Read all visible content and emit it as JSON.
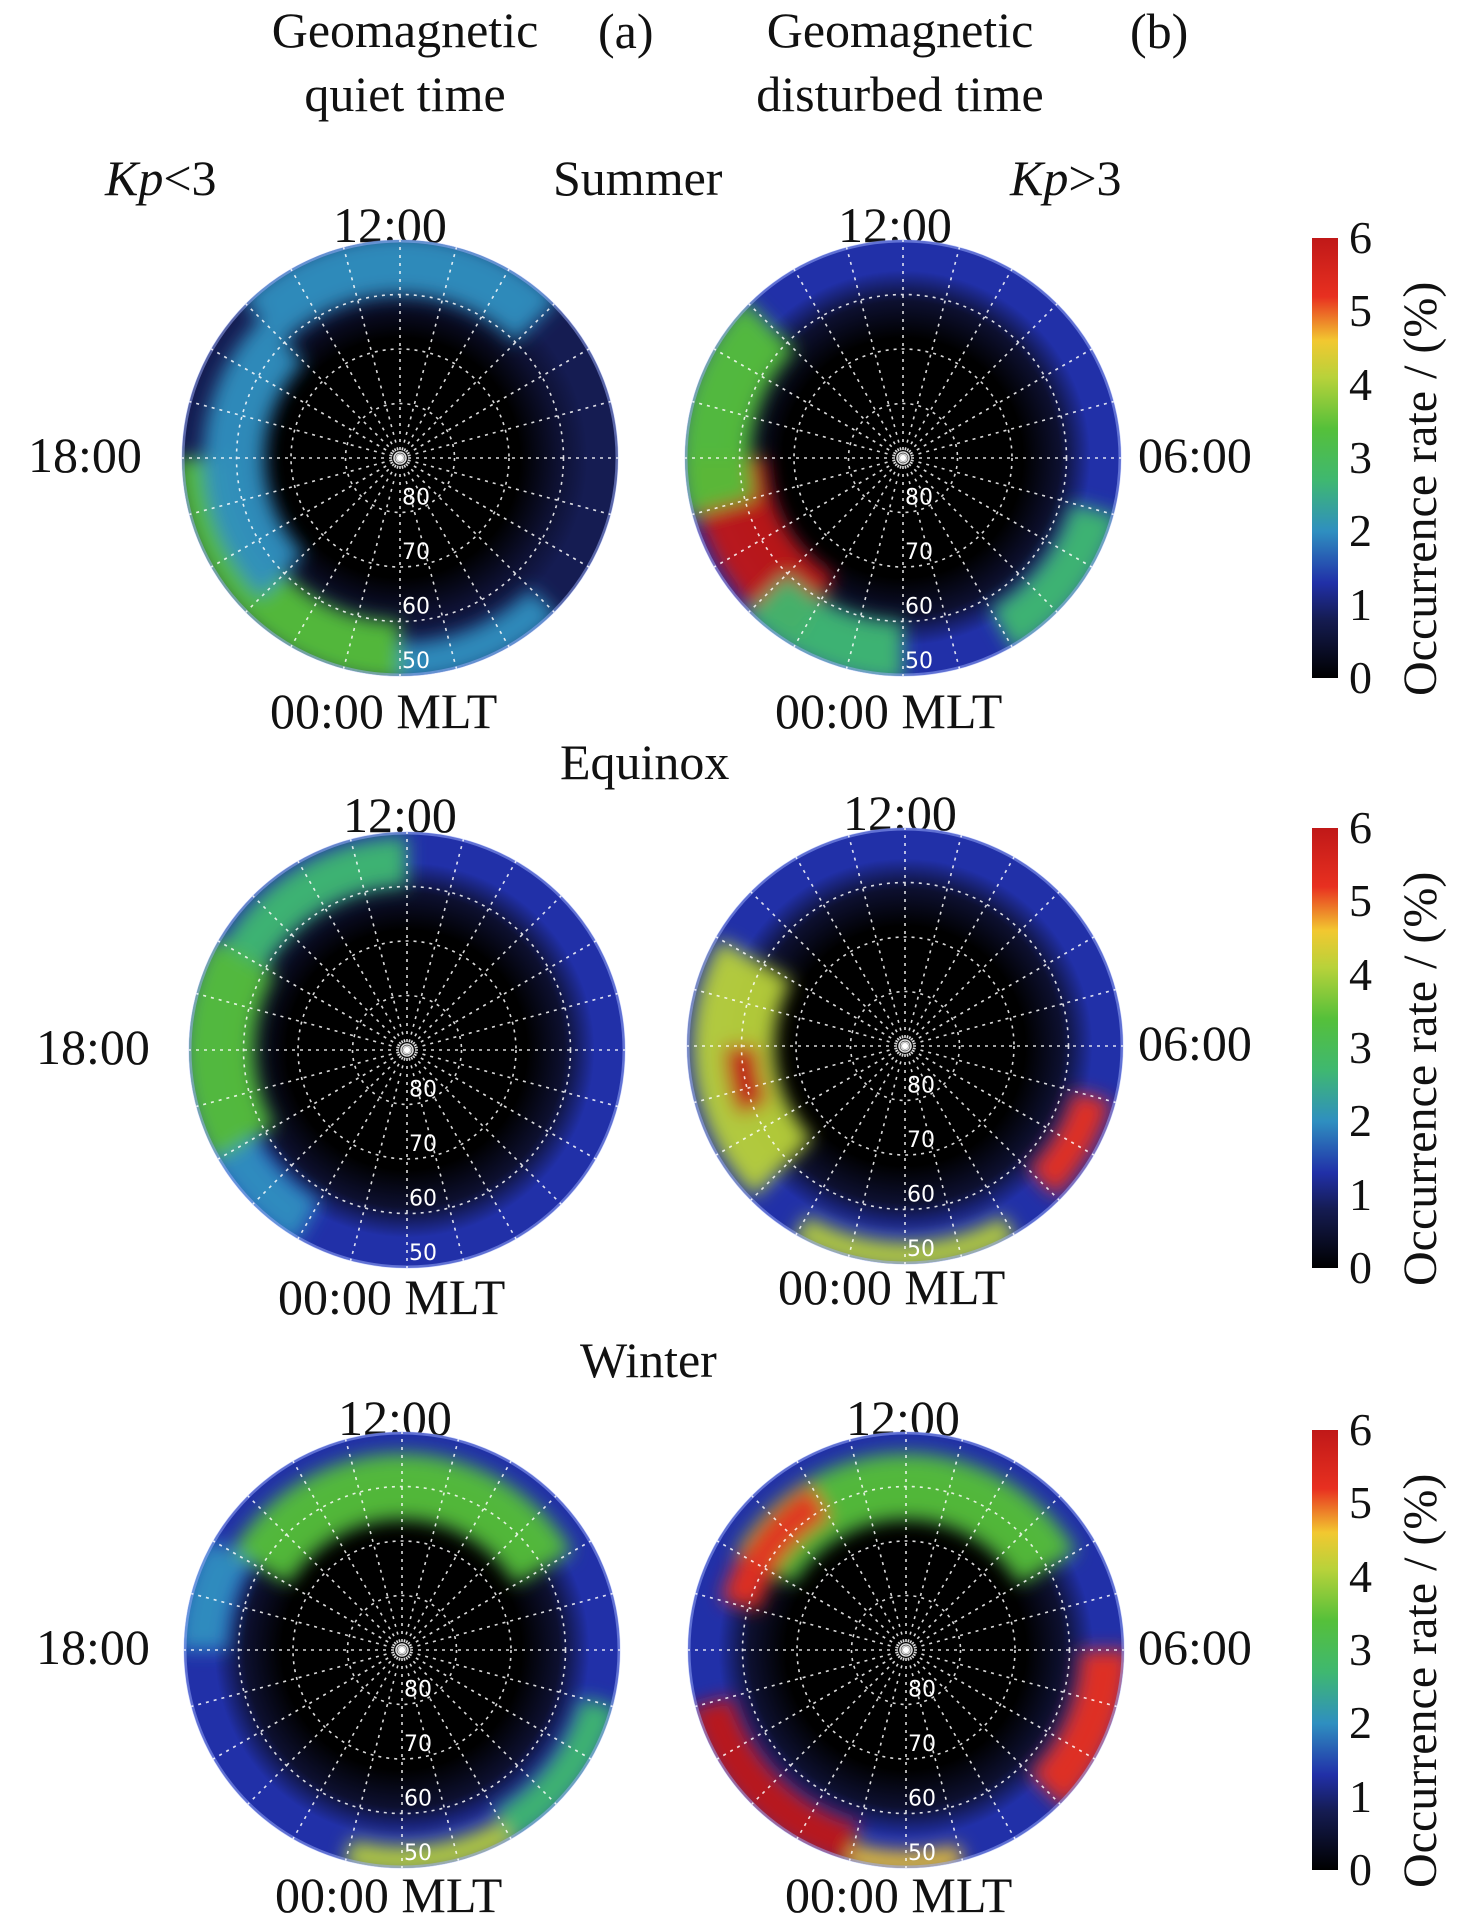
{
  "columns": [
    {
      "title_l1": "Geomagnetic",
      "title_l2": "quiet time",
      "panel": "(a)",
      "kp_pre": "Kp",
      "kp_op": "<3"
    },
    {
      "title_l1": "Geomagnetic",
      "title_l2": "disturbed time",
      "panel": "(b)",
      "kp_pre": "Kp",
      "kp_op": ">3"
    }
  ],
  "labels": {
    "top": "12:00",
    "bottom": "00:00 MLT",
    "left": "18:00",
    "right": "06:00"
  },
  "colorbar": {
    "title": "Occurrence rate / (%)",
    "ticks": [
      "6",
      "5",
      "4",
      "3",
      "2",
      "1",
      "0"
    ],
    "min": 0,
    "max": 6
  },
  "chart_data": [
    {
      "type": "heatmap",
      "season": "Summer",
      "condition": "Kp<3",
      "projection": "polar-MLT",
      "latitude_labels": [
        "80",
        "70",
        "60",
        "50"
      ],
      "mlt_labels": [
        "12:00",
        "06:00",
        "00:00 MLT",
        "18:00"
      ],
      "baseline": 0.8,
      "regions": [
        {
          "mlt_from": 18,
          "mlt_to": 24,
          "lat_from": 50,
          "lat_to": 60,
          "value": 3.0
        },
        {
          "mlt_from": 15,
          "mlt_to": 21,
          "lat_from": 55,
          "lat_to": 65,
          "value": 2.0
        },
        {
          "mlt_from": 0,
          "mlt_to": 3,
          "lat_from": 50,
          "lat_to": 56,
          "value": 2.0
        },
        {
          "mlt_from": 9,
          "mlt_to": 15,
          "lat_from": 50,
          "lat_to": 60,
          "value": 1.5
        }
      ],
      "colorbar_range": [
        0,
        6
      ]
    },
    {
      "type": "heatmap",
      "season": "Summer",
      "condition": "Kp>3",
      "projection": "polar-MLT",
      "latitude_labels": [
        "80",
        "70",
        "60",
        "50"
      ],
      "mlt_labels": [
        "12:00",
        "06:00",
        "00:00 MLT",
        "18:00"
      ],
      "baseline": 1.0,
      "regions": [
        {
          "mlt_from": 18,
          "mlt_to": 22,
          "lat_from": 52,
          "lat_to": 65,
          "value": 5.5
        },
        {
          "mlt_from": 15,
          "mlt_to": 19,
          "lat_from": 50,
          "lat_to": 62,
          "value": 3.0
        },
        {
          "mlt_from": 21,
          "mlt_to": 24,
          "lat_from": 50,
          "lat_to": 60,
          "value": 2.5
        },
        {
          "mlt_from": 2,
          "mlt_to": 5,
          "lat_from": 50,
          "lat_to": 58,
          "value": 2.5
        }
      ],
      "colorbar_range": [
        0,
        6
      ]
    },
    {
      "type": "heatmap",
      "season": "Equinox",
      "condition": "Kp<3",
      "projection": "polar-MLT",
      "latitude_labels": [
        "80",
        "70",
        "60",
        "50"
      ],
      "mlt_labels": [
        "12:00",
        "06:00",
        "00:00 MLT",
        "18:00"
      ],
      "baseline": 1.0,
      "regions": [
        {
          "mlt_from": 16,
          "mlt_to": 20,
          "lat_from": 50,
          "lat_to": 62,
          "value": 3.0
        },
        {
          "mlt_from": 12,
          "mlt_to": 16,
          "lat_from": 52,
          "lat_to": 60,
          "value": 2.5
        },
        {
          "mlt_from": 20,
          "mlt_to": 22,
          "lat_from": 50,
          "lat_to": 58,
          "value": 2.0
        }
      ],
      "colorbar_range": [
        0,
        6
      ]
    },
    {
      "type": "heatmap",
      "season": "Equinox",
      "condition": "Kp>3",
      "projection": "polar-MLT",
      "latitude_labels": [
        "80",
        "70",
        "60",
        "50"
      ],
      "mlt_labels": [
        "12:00",
        "06:00",
        "00:00 MLT",
        "18:00"
      ],
      "baseline": 1.2,
      "regions": [
        {
          "mlt_from": 16,
          "mlt_to": 21,
          "lat_from": 52,
          "lat_to": 66,
          "value": 3.5
        },
        {
          "mlt_from": 18,
          "mlt_to": 19.5,
          "lat_from": 58,
          "lat_to": 63,
          "value": 5.5
        },
        {
          "mlt_from": 22,
          "mlt_to": 2,
          "lat_from": 50,
          "lat_to": 54,
          "value": 4.0
        },
        {
          "mlt_from": 3,
          "mlt_to": 5,
          "lat_from": 52,
          "lat_to": 58,
          "value": 5.0
        }
      ],
      "colorbar_range": [
        0,
        6
      ]
    },
    {
      "type": "heatmap",
      "season": "Winter",
      "condition": "Kp<3",
      "projection": "polar-MLT",
      "latitude_labels": [
        "80",
        "70",
        "60",
        "50"
      ],
      "mlt_labels": [
        "12:00",
        "06:00",
        "00:00 MLT",
        "18:00"
      ],
      "baseline": 1.0,
      "regions": [
        {
          "mlt_from": 8,
          "mlt_to": 16,
          "lat_from": 55,
          "lat_to": 66,
          "value": 3.0
        },
        {
          "mlt_from": 16,
          "mlt_to": 18,
          "lat_from": 50,
          "lat_to": 58,
          "value": 2.0
        },
        {
          "mlt_from": 23,
          "mlt_to": 2,
          "lat_from": 50,
          "lat_to": 54,
          "value": 4.0
        },
        {
          "mlt_from": 2,
          "mlt_to": 5,
          "lat_from": 50,
          "lat_to": 56,
          "value": 2.5
        }
      ],
      "colorbar_range": [
        0,
        6
      ]
    },
    {
      "type": "heatmap",
      "season": "Winter",
      "condition": "Kp>3",
      "projection": "polar-MLT",
      "latitude_labels": [
        "80",
        "70",
        "60",
        "50"
      ],
      "mlt_labels": [
        "12:00",
        "06:00",
        "00:00 MLT",
        "18:00"
      ],
      "baseline": 1.2,
      "regions": [
        {
          "mlt_from": 8,
          "mlt_to": 16,
          "lat_from": 55,
          "lat_to": 66,
          "value": 3.0
        },
        {
          "mlt_from": 14,
          "mlt_to": 17,
          "lat_from": 56,
          "lat_to": 62,
          "value": 5.0
        },
        {
          "mlt_from": 19,
          "mlt_to": 23,
          "lat_from": 50,
          "lat_to": 57,
          "value": 5.5
        },
        {
          "mlt_from": 3,
          "mlt_to": 6,
          "lat_from": 50,
          "lat_to": 58,
          "value": 5.0
        },
        {
          "mlt_from": 23,
          "mlt_to": 1,
          "lat_from": 50,
          "lat_to": 53,
          "value": 4.5
        }
      ],
      "colorbar_range": [
        0,
        6
      ]
    }
  ]
}
